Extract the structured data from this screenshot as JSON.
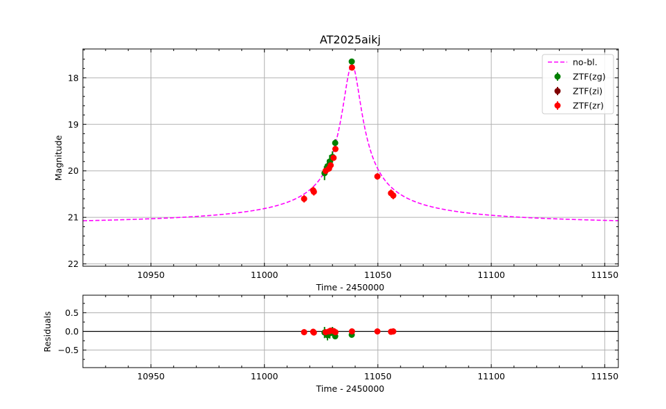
{
  "chart_data": [
    {
      "type": "scatter",
      "title": "AT2025aikj",
      "xlabel": "Time - 2450000",
      "ylabel": "Magnitude",
      "xlim": [
        10920,
        11156
      ],
      "ylim": [
        22.05,
        17.38
      ],
      "y_inverted": true,
      "grid": true,
      "legend_position": "top-right",
      "x_ticks": [
        10950,
        11000,
        11050,
        11100,
        11150
      ],
      "y_ticks": [
        18,
        19,
        20,
        21,
        22
      ],
      "model": {
        "name": "no-bl.",
        "color": "#ff00ff",
        "style": "dashed",
        "peak_time": 11038.6,
        "peak_mag": 17.72,
        "baseline_mag": 21.2,
        "tE": 5.5
      },
      "series": [
        {
          "name": "ZTF(zg)",
          "color": "#008000",
          "points": [
            {
              "x": 11026.5,
              "y": 20.05,
              "err": 0.15
            },
            {
              "x": 11027.8,
              "y": 19.9,
              "err": 0.14
            },
            {
              "x": 11028.8,
              "y": 19.8,
              "err": 0.14
            },
            {
              "x": 11030.0,
              "y": 19.7,
              "err": 0.12
            },
            {
              "x": 11031.2,
              "y": 19.4,
              "err": 0.08
            },
            {
              "x": 11038.5,
              "y": 17.65,
              "err": 0.05
            }
          ]
        },
        {
          "name": "ZTF(zi)",
          "color": "#800000",
          "points": []
        },
        {
          "name": "ZTF(zr)",
          "color": "#ff0000",
          "points": [
            {
              "x": 11017.5,
              "y": 20.6,
              "err": 0.08
            },
            {
              "x": 11021.5,
              "y": 20.42,
              "err": 0.08
            },
            {
              "x": 11021.8,
              "y": 20.45,
              "err": 0.08
            },
            {
              "x": 11027.0,
              "y": 20.0,
              "err": 0.07
            },
            {
              "x": 11028.5,
              "y": 19.95,
              "err": 0.07
            },
            {
              "x": 11029.2,
              "y": 19.88,
              "err": 0.06
            },
            {
              "x": 11030.5,
              "y": 19.72,
              "err": 0.06
            },
            {
              "x": 11031.3,
              "y": 19.53,
              "err": 0.05
            },
            {
              "x": 11038.6,
              "y": 17.78,
              "err": 0.04
            },
            {
              "x": 11049.8,
              "y": 20.12,
              "err": 0.07
            },
            {
              "x": 11055.8,
              "y": 20.48,
              "err": 0.08
            },
            {
              "x": 11056.8,
              "y": 20.53,
              "err": 0.08
            }
          ]
        }
      ]
    },
    {
      "type": "scatter",
      "title": "",
      "xlabel": "Time - 2450000",
      "ylabel": "Residuals",
      "xlim": [
        10920,
        11156
      ],
      "ylim": [
        -0.97,
        0.97
      ],
      "grid": true,
      "x_ticks": [
        10950,
        11000,
        11050,
        11100,
        11150
      ],
      "y_ticks": [
        0.5,
        0.0,
        -0.5
      ],
      "y_tick_labels": [
        "0.5",
        "0.0",
        "−0.5"
      ],
      "zero_line": true,
      "series": [
        {
          "name": "ZTF(zg)",
          "color": "#008000",
          "points": [
            {
              "x": 11026.5,
              "y": -0.03,
              "err": 0.15
            },
            {
              "x": 11027.8,
              "y": -0.1,
              "err": 0.14
            },
            {
              "x": 11028.8,
              "y": -0.05,
              "err": 0.14
            },
            {
              "x": 11030.0,
              "y": 0.0,
              "err": 0.12
            },
            {
              "x": 11031.2,
              "y": -0.13,
              "err": 0.08
            },
            {
              "x": 11038.5,
              "y": -0.09,
              "err": 0.05
            }
          ]
        },
        {
          "name": "ZTF(zr)",
          "color": "#ff0000",
          "points": [
            {
              "x": 11017.5,
              "y": -0.02,
              "err": 0.08
            },
            {
              "x": 11021.5,
              "y": -0.01,
              "err": 0.08
            },
            {
              "x": 11021.8,
              "y": -0.03,
              "err": 0.08
            },
            {
              "x": 11027.0,
              "y": -0.02,
              "err": 0.07
            },
            {
              "x": 11028.5,
              "y": 0.0,
              "err": 0.07
            },
            {
              "x": 11029.2,
              "y": 0.02,
              "err": 0.06
            },
            {
              "x": 11030.5,
              "y": 0.01,
              "err": 0.06
            },
            {
              "x": 11031.3,
              "y": -0.02,
              "err": 0.05
            },
            {
              "x": 11038.6,
              "y": 0.0,
              "err": 0.04
            },
            {
              "x": 11049.8,
              "y": 0.0,
              "err": 0.07
            },
            {
              "x": 11055.8,
              "y": -0.01,
              "err": 0.08
            },
            {
              "x": 11056.8,
              "y": 0.0,
              "err": 0.08
            }
          ]
        }
      ]
    }
  ]
}
